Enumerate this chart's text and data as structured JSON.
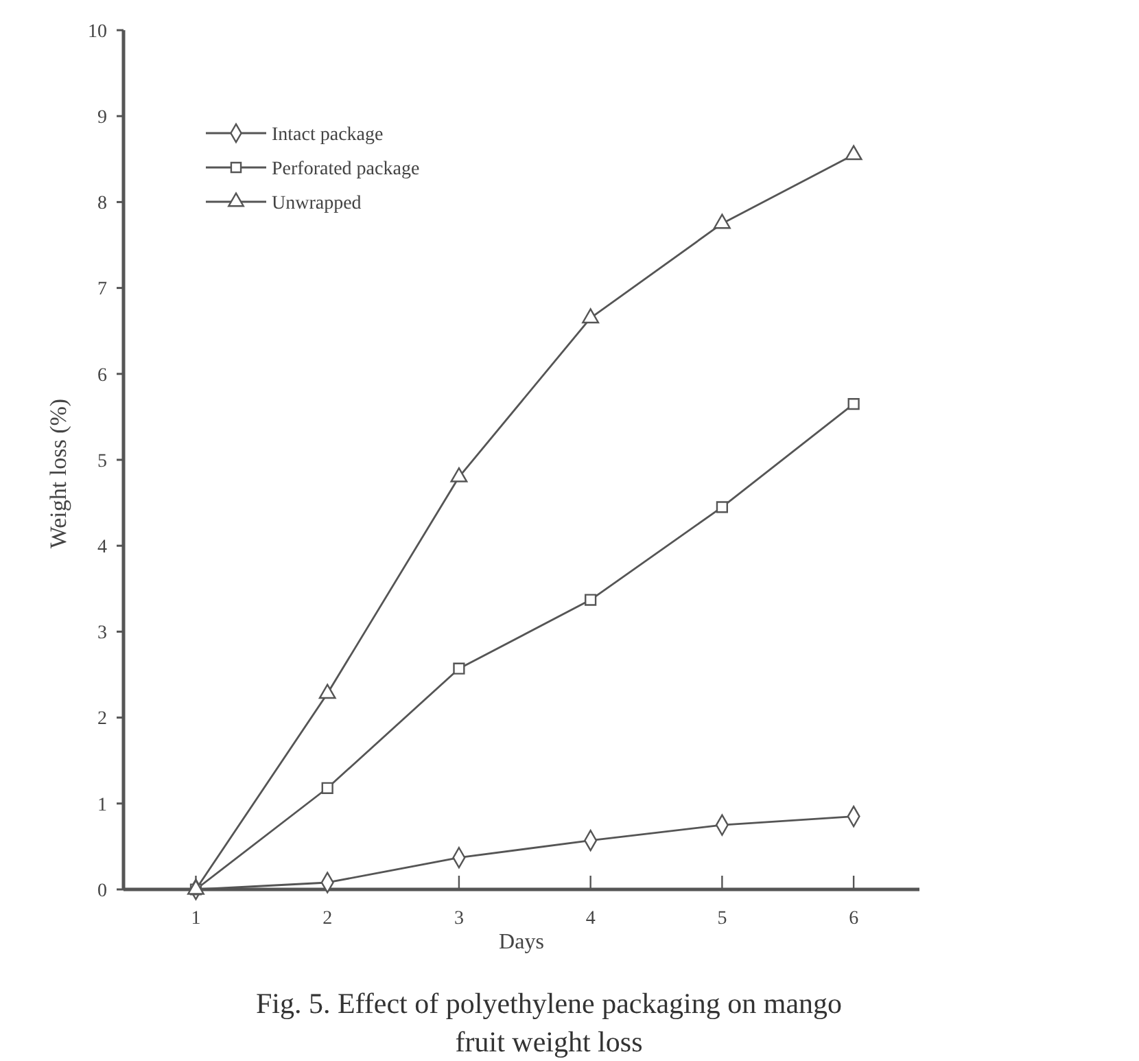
{
  "chart_data": {
    "type": "line",
    "title": "Fig. 5. Effect of polyethylene packaging on mango fruit weight loss",
    "xlabel": "Days",
    "ylabel": "Weight loss (%)",
    "x": [
      1,
      2,
      3,
      4,
      5,
      6
    ],
    "series": [
      {
        "name": "Intact package",
        "color": "#555555",
        "marker": "diamond",
        "values": [
          0,
          0.08,
          0.37,
          0.57,
          0.75,
          0.85
        ]
      },
      {
        "name": "Perforated package",
        "color": "#555555",
        "marker": "square",
        "values": [
          0,
          1.18,
          2.57,
          3.37,
          4.45,
          5.65
        ]
      },
      {
        "name": "Unwrapped",
        "color": "#555555",
        "marker": "triangle",
        "values": [
          0,
          2.28,
          4.8,
          6.65,
          7.75,
          8.55
        ]
      }
    ],
    "xlim": [
      0.45,
      6.5
    ],
    "xticks": [
      1,
      2,
      3,
      4,
      5,
      6
    ],
    "ylim": [
      0,
      10
    ],
    "yticks": [
      0,
      1,
      2,
      3,
      4,
      5,
      6,
      7,
      8,
      9,
      10
    ],
    "grid": false,
    "legend": "top left",
    "line_style": "solid"
  }
}
